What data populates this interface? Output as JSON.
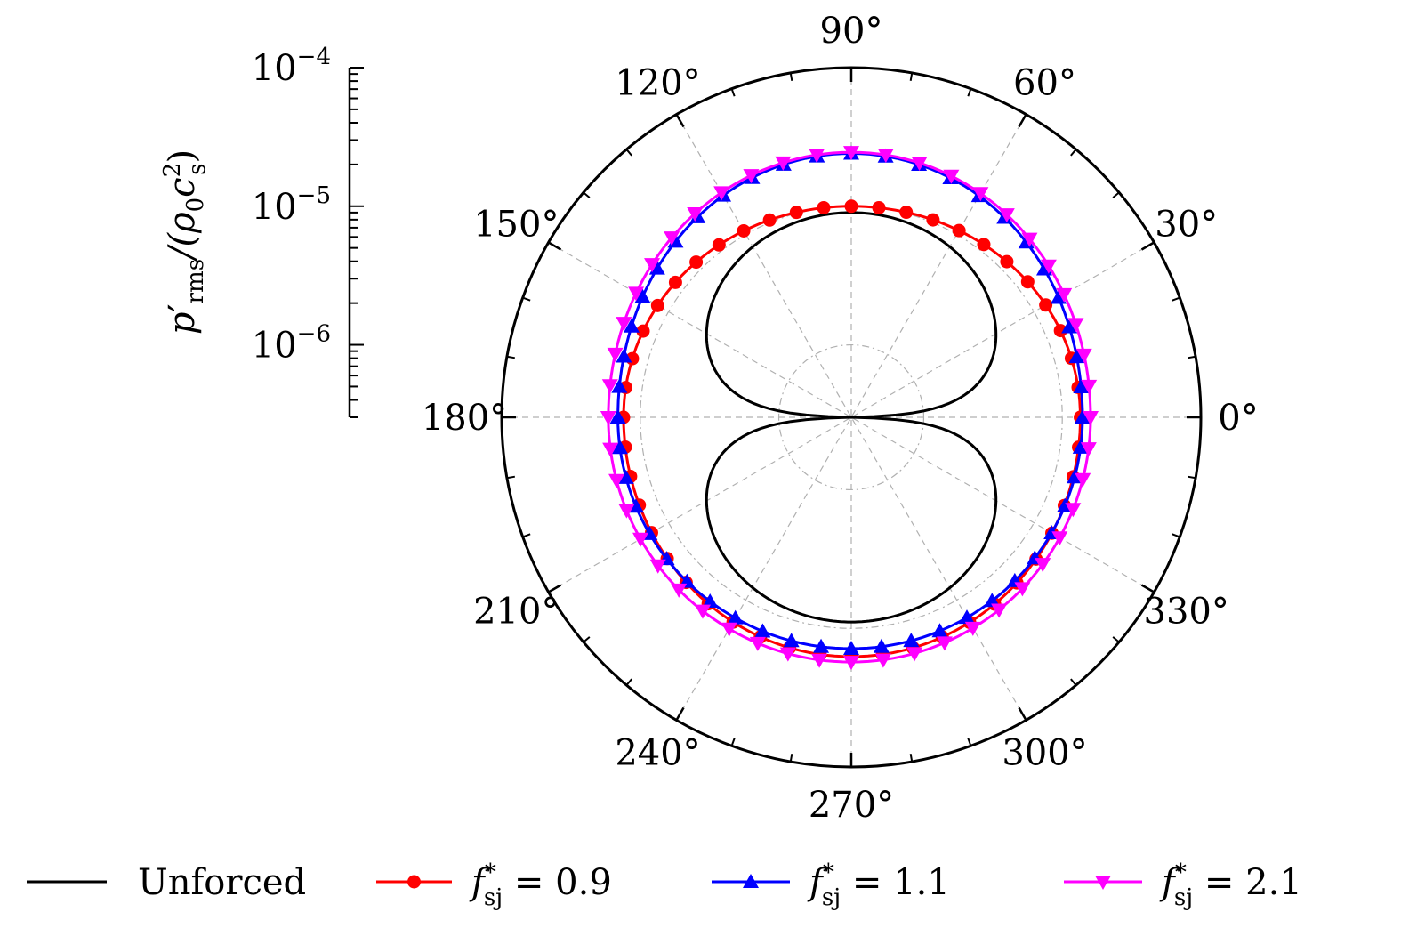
{
  "chart_data": {
    "type": "polar-line",
    "radial_axis": {
      "label_main": "p",
      "label_prime": "′",
      "label_sub": "rms",
      "label_rest": "/(ρ",
      "label_rest_sub": "0",
      "label_c": "c",
      "label_c_sup": "2",
      "label_c_sub": "s",
      "label_close": ")",
      "scale": "log",
      "range": [
        3e-07,
        0.0001
      ],
      "ticks": [
        {
          "value": 0.0001,
          "base": "10",
          "exp": "−4"
        },
        {
          "value": 1e-05,
          "base": "10",
          "exp": "−5"
        },
        {
          "value": 1e-06,
          "base": "10",
          "exp": "−6"
        }
      ]
    },
    "angular_ticks": [
      "0°",
      "30°",
      "60°",
      "90°",
      "120°",
      "150°",
      "180°",
      "210°",
      "240°",
      "270°",
      "300°",
      "330°"
    ],
    "grid": true,
    "legend_position": "bottom",
    "series": [
      {
        "name": "Unforced",
        "color": "#000000",
        "marker": "none",
        "model": "dipole",
        "peak_value": 9e-06,
        "min_value": 3e-07,
        "angles_deg": [
          0,
          15,
          30,
          45,
          60,
          75,
          90,
          105,
          120,
          135,
          150,
          165,
          180,
          195,
          210,
          225,
          240,
          255,
          270,
          285,
          300,
          315,
          330,
          345
        ]
      },
      {
        "name": "f",
        "sym_sub": "sj",
        "sym_sup": "*",
        "value_text": " = 0.9",
        "color": "#ff0000",
        "marker": "circle",
        "values_at_90": 1e-05,
        "values_at_0": 1.35e-05,
        "values_at_180": 1.32e-05,
        "values_at_270": 1.6e-05,
        "marker_spacing_deg": 7.5
      },
      {
        "name": "f",
        "sym_sub": "sj",
        "sym_sup": "*",
        "value_text": " = 1.1",
        "color": "#0000ff",
        "marker": "triangle-up",
        "values_at_90": 2.4e-05,
        "values_at_0": 1.4e-05,
        "values_at_180": 1.45e-05,
        "values_at_270": 1.4e-05,
        "marker_spacing_deg": 7.5
      },
      {
        "name": "f",
        "sym_sub": "sj",
        "sym_sup": "*",
        "value_text": " = 2.1",
        "color": "#ff00ff",
        "marker": "triangle-down",
        "values_at_90": 2.45e-05,
        "values_at_0": 1.6e-05,
        "values_at_180": 1.7e-05,
        "values_at_270": 1.75e-05,
        "marker_spacing_deg": 7.5
      }
    ]
  }
}
